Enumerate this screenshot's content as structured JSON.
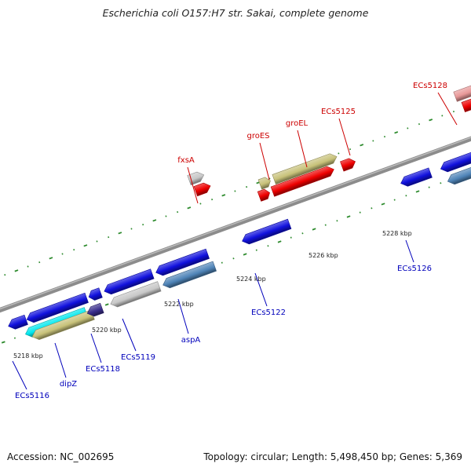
{
  "title": "Escherichia coli O157:H7 str. Sakai, complete genome",
  "footer": {
    "accession": "Accession: NC_002695",
    "summary": "Topology: circular; Length: 5,498,450 bp; Genes: 5,369"
  },
  "colors": {
    "backbone": "#8c8c8c",
    "tick": "#2e8b2e",
    "forward_label": "#cc0000",
    "reverse_label": "#0000bb",
    "red_gene": "#ee0000",
    "tan_gene": "#c8c27a",
    "blue_gene": "#1010dd",
    "steel_gene": "#4f84b8",
    "gray_gene": "#c8c8c8",
    "cyan_gene": "#00e8ee",
    "navy_gene": "#3a2e8c",
    "pink_gene": "#e89898"
  },
  "scale_labels": [
    "5218 kbp",
    "5220 kbp",
    "5222 kbp",
    "5224 kbp",
    "5226 kbp",
    "5228 kbp"
  ],
  "forward_gene_labels": [
    "fxsA",
    "groES",
    "groEL",
    "ECs5125",
    "ECs5128"
  ],
  "reverse_gene_labels": [
    "ECs5116",
    "dipZ",
    "ECs5118",
    "ECs5119",
    "aspA",
    "ECs5122",
    "ECs5126"
  ]
}
